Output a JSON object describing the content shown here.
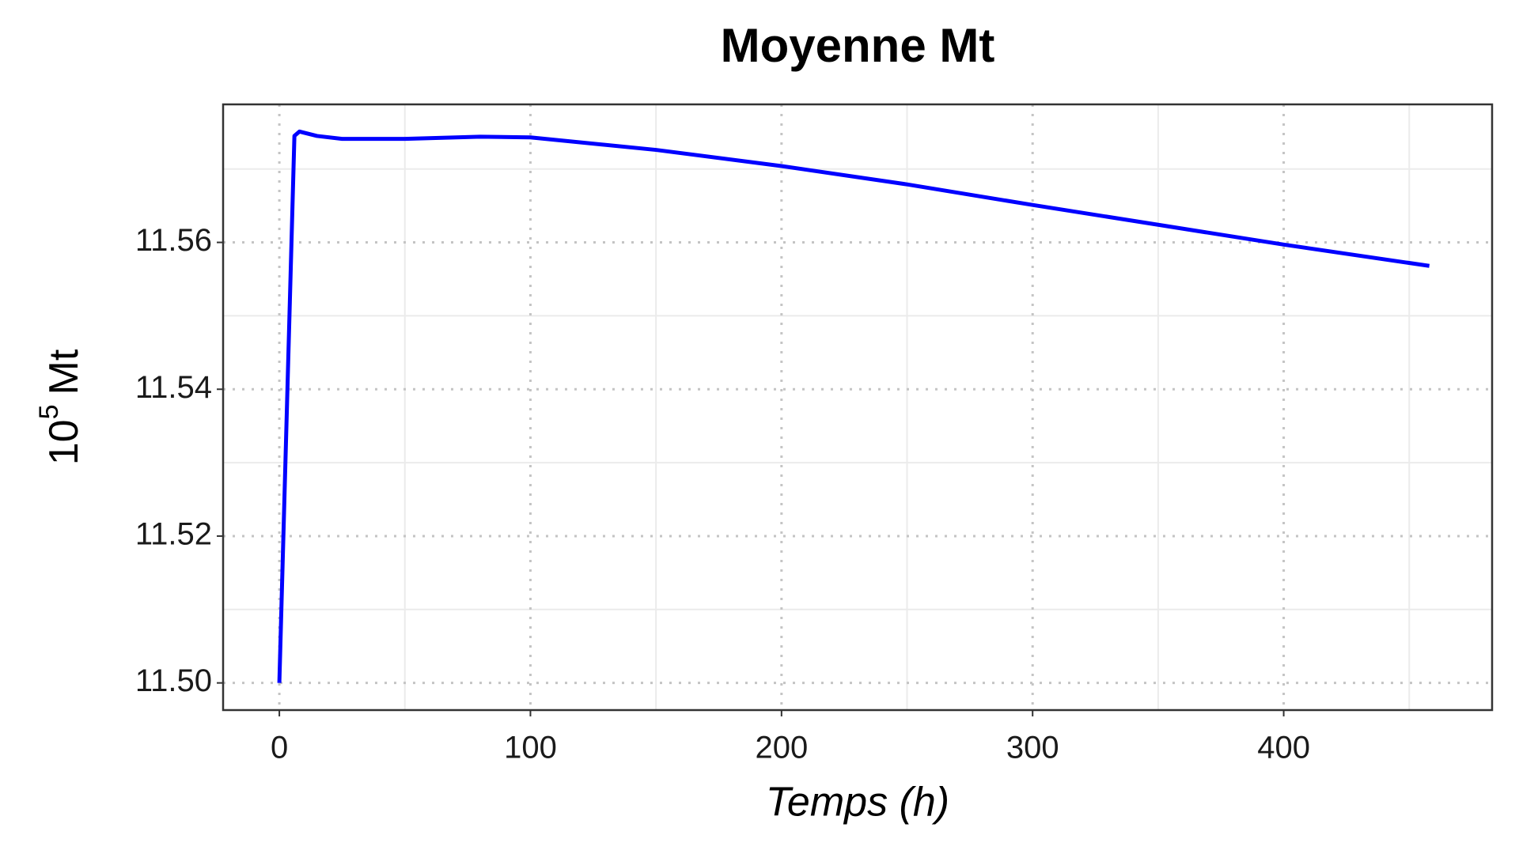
{
  "chart_data": {
    "type": "line",
    "title": "Moyenne Mt",
    "xlabel": "Temps (h)",
    "ylabel_parts": [
      "10",
      "5",
      "Mt"
    ],
    "x": [
      0,
      6,
      8,
      15,
      25,
      50,
      80,
      100,
      150,
      200,
      250,
      300,
      350,
      400,
      458
    ],
    "series": [
      {
        "color": "#0000ff",
        "values": [
          11.5,
          11.5745,
          11.5751,
          11.5745,
          11.5741,
          11.5741,
          11.5744,
          11.5743,
          11.5726,
          11.5704,
          11.5679,
          11.5651,
          11.5624,
          11.5597,
          11.5568
        ]
      }
    ],
    "xlim": [
      -22.4,
      483
    ],
    "ylim": [
      11.4963,
      11.5788
    ],
    "xticks": [
      0,
      100,
      200,
      300,
      400
    ],
    "yticks": [
      {
        "value": 11.5,
        "label": "11.50"
      },
      11.52,
      11.54,
      11.56
    ],
    "xminor": [
      50,
      150,
      250,
      350,
      450
    ],
    "yminor": [
      11.51,
      11.53,
      11.55,
      11.57
    ],
    "grid": true
  }
}
